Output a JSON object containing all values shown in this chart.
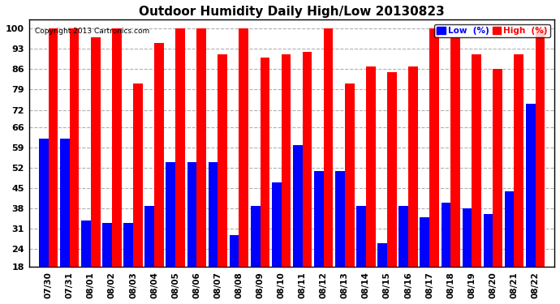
{
  "title": "Outdoor Humidity Daily High/Low 20130823",
  "copyright": "Copyright 2013 Cartronics.com",
  "dates": [
    "07/30",
    "07/31",
    "08/01",
    "08/02",
    "08/03",
    "08/04",
    "08/05",
    "08/06",
    "08/07",
    "08/08",
    "08/09",
    "08/10",
    "08/11",
    "08/12",
    "08/13",
    "08/14",
    "08/15",
    "08/16",
    "08/17",
    "08/18",
    "08/19",
    "08/20",
    "08/21",
    "08/22"
  ],
  "high_values": [
    100,
    100,
    97,
    100,
    81,
    95,
    100,
    100,
    91,
    100,
    90,
    91,
    92,
    100,
    81,
    87,
    85,
    87,
    100,
    97,
    91,
    86,
    91,
    100
  ],
  "low_values": [
    62,
    62,
    34,
    33,
    33,
    39,
    54,
    54,
    54,
    29,
    39,
    47,
    60,
    51,
    51,
    39,
    26,
    39,
    35,
    40,
    38,
    36,
    44,
    74
  ],
  "bar_color_high": "#ff0000",
  "bar_color_low": "#0000ff",
  "bg_color": "#ffffff",
  "plot_bg_color": "#ffffff",
  "grid_color": "#b0b0b0",
  "yticks": [
    18,
    24,
    31,
    38,
    45,
    52,
    59,
    66,
    72,
    79,
    86,
    93,
    100
  ],
  "ylim_min": 18,
  "ylim_max": 103,
  "legend_label_low": "Low  (%)",
  "legend_label_high": "High  (%)"
}
